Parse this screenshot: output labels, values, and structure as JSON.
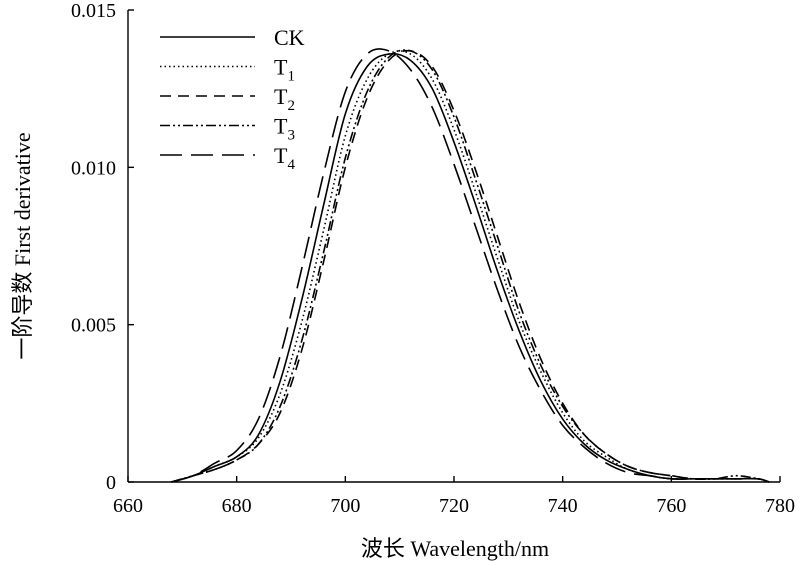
{
  "chart_data": {
    "type": "line",
    "xlabel": "波长 Wavelength/nm",
    "ylabel": "一阶导数 First derivative",
    "xlim": [
      660,
      780
    ],
    "ylim": [
      0,
      0.015
    ],
    "x_ticks": [
      "660",
      "680",
      "700",
      "720",
      "740",
      "760",
      "780"
    ],
    "y_ticks": [
      "0",
      "0.005",
      "0.010",
      "0.015"
    ],
    "legend_position": "top-left",
    "grid": false,
    "x": [
      668,
      672,
      676,
      680,
      684,
      688,
      692,
      696,
      700,
      704,
      708,
      712,
      716,
      720,
      724,
      728,
      732,
      736,
      740,
      744,
      748,
      752,
      756,
      760,
      764,
      768,
      772,
      776,
      778
    ],
    "series": [
      {
        "name": "CK",
        "sub": "",
        "dash": "solid",
        "values": [
          0,
          0.0002,
          0.0005,
          0.0008,
          0.0015,
          0.0032,
          0.0058,
          0.0088,
          0.0117,
          0.0132,
          0.0136,
          0.0134,
          0.0125,
          0.0108,
          0.0088,
          0.0067,
          0.0048,
          0.0032,
          0.002,
          0.0012,
          0.0007,
          0.0004,
          0.0002,
          0.0001,
          0.0001,
          0.0001,
          0.0001,
          0.0001,
          0
        ]
      },
      {
        "name": "T",
        "sub": "1",
        "dash": "dotted",
        "values": [
          0,
          0.0002,
          0.0005,
          0.0008,
          0.0014,
          0.0028,
          0.0051,
          0.008,
          0.011,
          0.0128,
          0.0136,
          0.0136,
          0.0128,
          0.0112,
          0.0092,
          0.0071,
          0.0051,
          0.0035,
          0.0022,
          0.0013,
          0.0008,
          0.0004,
          0.0002,
          0.0001,
          0.0001,
          0.0001,
          0.0001,
          0.0001,
          0
        ]
      },
      {
        "name": "T",
        "sub": "2",
        "dash": "dashed",
        "values": [
          0,
          0.0002,
          0.0004,
          0.0007,
          0.0012,
          0.0022,
          0.0042,
          0.007,
          0.01,
          0.0122,
          0.0134,
          0.0137,
          0.0132,
          0.0118,
          0.0099,
          0.0078,
          0.0057,
          0.0039,
          0.0025,
          0.0015,
          0.0009,
          0.0005,
          0.0003,
          0.0002,
          0.0001,
          0.0001,
          0.0001,
          0.0001,
          0
        ]
      },
      {
        "name": "T",
        "sub": "3",
        "dash": "dashdotdot",
        "values": [
          0,
          0.0002,
          0.0004,
          0.0007,
          0.0012,
          0.0024,
          0.0045,
          0.0073,
          0.0103,
          0.0124,
          0.0135,
          0.0137,
          0.0131,
          0.0116,
          0.0096,
          0.0075,
          0.0054,
          0.0037,
          0.0024,
          0.0015,
          0.0009,
          0.0005,
          0.0003,
          0.0002,
          0.0001,
          0.0001,
          0.0002,
          0.0001,
          0
        ]
      },
      {
        "name": "T",
        "sub": "4",
        "dash": "longdash",
        "values": [
          0,
          0.0002,
          0.0006,
          0.001,
          0.002,
          0.004,
          0.0068,
          0.0098,
          0.0124,
          0.0136,
          0.0137,
          0.0131,
          0.0119,
          0.0101,
          0.0081,
          0.0061,
          0.0043,
          0.0029,
          0.0018,
          0.0011,
          0.0006,
          0.0003,
          0.0002,
          0.0001,
          0.0001,
          0.0001,
          0.0001,
          0.0001,
          0
        ]
      }
    ]
  }
}
